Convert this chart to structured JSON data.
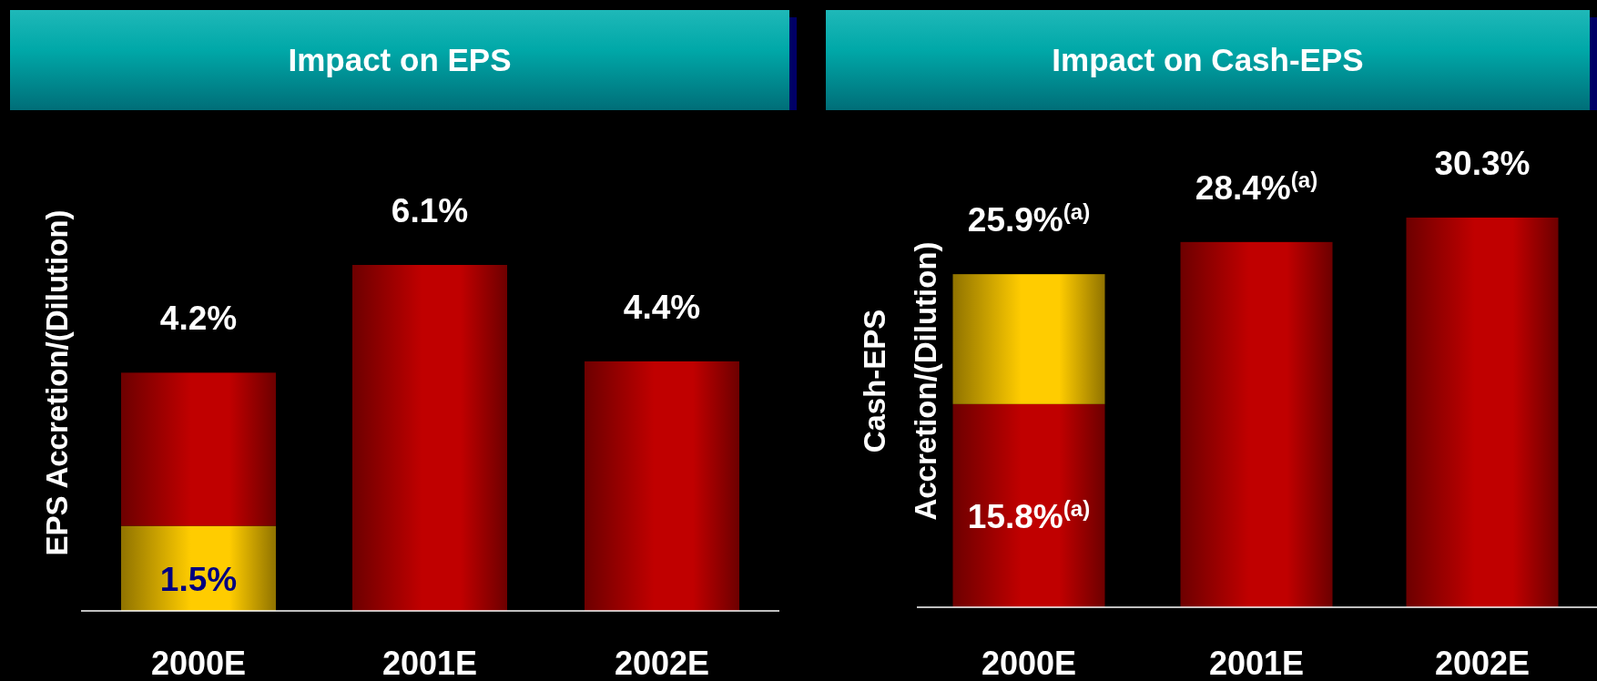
{
  "chart_data": [
    {
      "type": "bar",
      "title": "Impact on EPS",
      "ylabel": "EPS Accretion/(Dilution)",
      "categories": [
        "2000E",
        "2001E",
        "2002E"
      ],
      "stacked": true,
      "series": [
        {
          "color": "#ffcc00",
          "values": [
            1.5,
            null,
            null
          ],
          "value_labels": [
            "1.5%",
            null,
            null
          ]
        },
        {
          "color": "#c00000",
          "values": [
            2.7,
            6.1,
            4.4
          ]
        }
      ],
      "totals": [
        "4.2%",
        "6.1%",
        "4.4%"
      ]
    },
    {
      "type": "bar",
      "title": "Impact on Cash-EPS",
      "ylabel": "Cash-EPS Accretion/(Dilution)",
      "categories": [
        "2000E",
        "2001E",
        "2002E"
      ],
      "stacked": true,
      "series": [
        {
          "color": "#c00000",
          "values": [
            15.8,
            28.4,
            30.3
          ],
          "value_labels": [
            "15.8%$^{(a)}$",
            null,
            null
          ]
        },
        {
          "color": "#ffcc00",
          "values": [
            10.1,
            null,
            null
          ]
        }
      ],
      "totals": [
        "25.9%$^{(a)}$",
        "28.4%$^{(a)}$",
        "30.3%"
      ]
    }
  ]
}
